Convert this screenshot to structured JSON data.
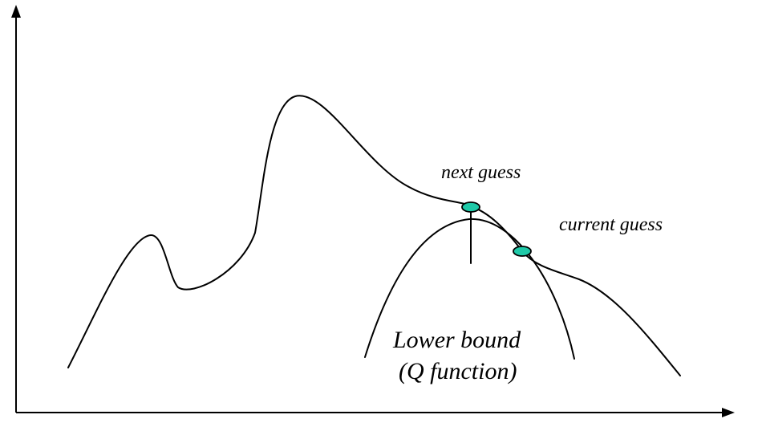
{
  "labels": {
    "next_guess": "next guess",
    "current_guess": "current guess",
    "lower_bound_line1": "Lower bound",
    "lower_bound_line2": "(Q function)"
  },
  "colors": {
    "marker_fill": "#1fc9a8",
    "stroke": "#000000",
    "background": "#ffffff"
  }
}
